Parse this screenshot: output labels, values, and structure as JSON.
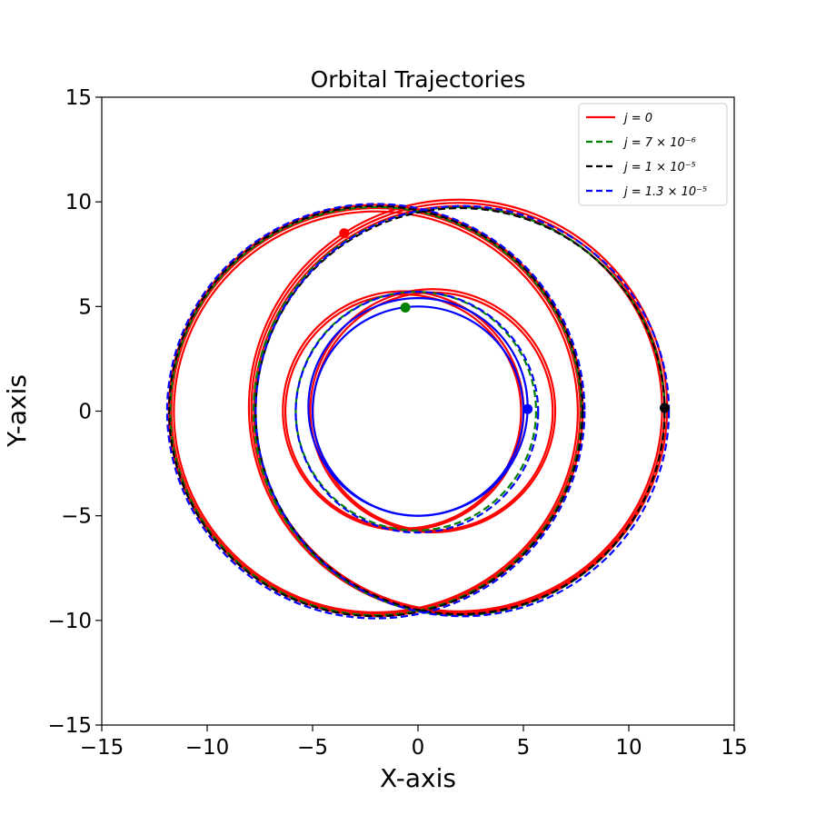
{
  "chart_data": {
    "type": "line",
    "title": "Orbital Trajectories",
    "xlabel": "X-axis",
    "ylabel": "Y-axis",
    "xlim": [
      -15,
      15
    ],
    "ylim": [
      -15,
      15
    ],
    "xticks": [
      -15,
      -10,
      -5,
      0,
      5,
      10,
      15
    ],
    "yticks": [
      -15,
      -10,
      -5,
      0,
      5,
      10,
      15
    ],
    "xtick_labels": [
      "−15",
      "−10",
      "−5",
      "0",
      "5",
      "10",
      "15"
    ],
    "ytick_labels": [
      "−15",
      "−10",
      "−5",
      "0",
      "5",
      "10",
      "15"
    ],
    "grid": false,
    "legend_position": "top-right",
    "series": [
      {
        "name": "j = 0",
        "color": "#ff0000",
        "style": "solid",
        "orbits": [
          {
            "cx": -2.0,
            "cy": 0.0,
            "r": 9.7,
            "phases": 3
          },
          {
            "cx": 1.9,
            "cy": 0.15,
            "r": 9.8,
            "phases": 3
          },
          {
            "cx": 0.7,
            "cy": 0.0,
            "r": 5.75,
            "phases": 2
          },
          {
            "cx": -0.7,
            "cy": 0.0,
            "r": 5.65,
            "phases": 2
          }
        ],
        "marker": {
          "x": -3.5,
          "y": 8.5
        }
      },
      {
        "name": "j = 7 × 10⁻⁶",
        "color": "#008000",
        "style": "dashed",
        "orbits": [
          {
            "cx": -2.0,
            "cy": 0.0,
            "r": 9.75,
            "phases": 1
          },
          {
            "cx": 1.95,
            "cy": 0.0,
            "r": 9.75,
            "phases": 1
          },
          {
            "cx": -0.1,
            "cy": 0.0,
            "r": 5.7,
            "phases": 1
          }
        ],
        "marker": {
          "x": -0.6,
          "y": 4.95
        }
      },
      {
        "name": "j = 1 × 10⁻⁵",
        "color": "#000000",
        "style": "dashed",
        "orbits": [
          {
            "cx": -2.0,
            "cy": 0.0,
            "r": 9.8,
            "phases": 1
          },
          {
            "cx": 2.0,
            "cy": 0.0,
            "r": 9.7,
            "phases": 1
          }
        ],
        "marker": {
          "x": 11.7,
          "y": 0.15
        }
      },
      {
        "name": "j = 1.3 × 10⁻⁵",
        "color": "#0000ff",
        "style": "dashed",
        "orbits": [
          {
            "cx": -2.0,
            "cy": 0.0,
            "r": 9.9,
            "phases": 1
          },
          {
            "cx": 2.1,
            "cy": 0.0,
            "r": 9.8,
            "phases": 1
          },
          {
            "cx": -0.05,
            "cy": -0.05,
            "r": 5.75,
            "phases": 1
          }
        ],
        "solid_orbits": [
          {
            "cx": 0.0,
            "cy": 0.2,
            "r": 5.2
          },
          {
            "cx": 0.0,
            "cy": 0.0,
            "r": 5.0
          }
        ],
        "marker": {
          "x": 5.2,
          "y": 0.1
        }
      }
    ],
    "legend": [
      {
        "label": "j = 0",
        "color": "#ff0000",
        "style": "solid"
      },
      {
        "label": "j = 7 × 10⁻⁶",
        "color": "#008000",
        "style": "dashed"
      },
      {
        "label": "j = 1 × 10⁻⁵",
        "color": "#000000",
        "style": "dashed"
      },
      {
        "label": "j = 1.3 × 10⁻⁵",
        "color": "#0000ff",
        "style": "dashed"
      }
    ]
  }
}
